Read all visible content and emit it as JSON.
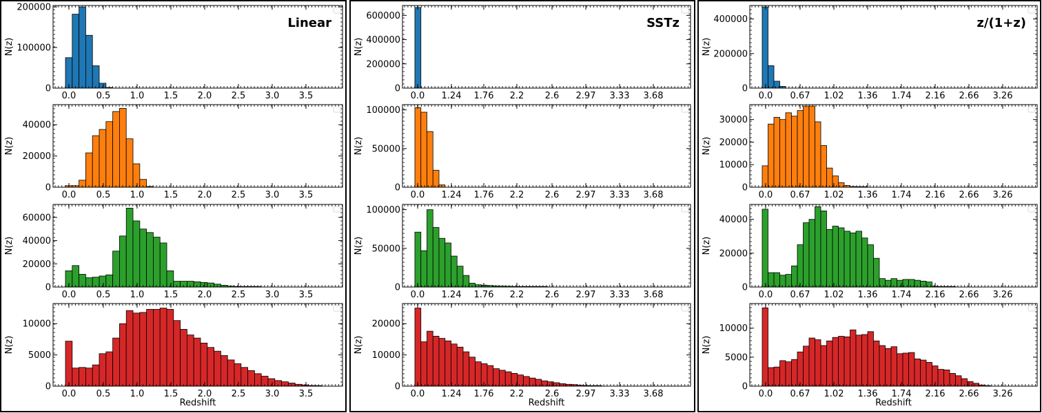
{
  "chart_data": [
    {
      "type": "bar",
      "title": "Linear",
      "xlabel": "Redshift",
      "ylabel": "N(z)",
      "xticks": [
        "0.0",
        "0.5",
        "1.0",
        "1.5",
        "2.0",
        "2.5",
        "3.0",
        "3.5"
      ],
      "subplots": [
        {
          "color": "#1f77b4",
          "ylim": [
            0,
            200000
          ],
          "yticks": [
            "0",
            "100000",
            "200000"
          ],
          "values": [
            75000,
            182000,
            200000,
            130000,
            55000,
            12000,
            1500
          ]
        },
        {
          "color": "#ff7f0e",
          "ylim": [
            0,
            52000
          ],
          "yticks": [
            "0",
            "20000",
            "40000"
          ],
          "values": [
            1000,
            1000,
            4500,
            22000,
            33000,
            37000,
            42000,
            48500,
            50500,
            31000,
            15000,
            5000,
            500
          ]
        },
        {
          "color": "#2ca02c",
          "ylim": [
            0,
            70000
          ],
          "yticks": [
            "0",
            "20000",
            "40000",
            "60000"
          ],
          "values": [
            14000,
            18500,
            11000,
            8000,
            8500,
            9500,
            10500,
            31000,
            44000,
            68000,
            57000,
            50000,
            47000,
            43000,
            38000,
            14000,
            5000,
            5000,
            5000,
            4500,
            4000,
            3500,
            2500,
            1500,
            800,
            400,
            200,
            100,
            50,
            0,
            0,
            0,
            0,
            0,
            0,
            0,
            0,
            0,
            0,
            0
          ]
        },
        {
          "color": "#d62728",
          "ylim": [
            0,
            13000
          ],
          "yticks": [
            "0",
            "5000",
            "10000"
          ],
          "values": [
            7200,
            2900,
            3000,
            2900,
            3400,
            5200,
            5500,
            7700,
            10000,
            12100,
            11700,
            11800,
            12300,
            12300,
            12500,
            12300,
            10500,
            9100,
            8200,
            7700,
            6900,
            6200,
            5600,
            4900,
            4200,
            3600,
            3000,
            2500,
            2000,
            1600,
            1200,
            900,
            700,
            500,
            300,
            200,
            100,
            50,
            0,
            0
          ]
        }
      ]
    },
    {
      "type": "bar",
      "title": "SSTz",
      "xlabel": "Redshift",
      "ylabel": "N(z)",
      "xticks": [
        "0.0",
        "1.24",
        "1.76",
        "2.2",
        "2.6",
        "2.97",
        "3.33",
        "3.68"
      ],
      "subplots": [
        {
          "color": "#1f77b4",
          "ylim": [
            0,
            670000
          ],
          "yticks": [
            "0",
            "200000",
            "400000",
            "600000"
          ],
          "values": [
            665000
          ]
        },
        {
          "color": "#ff7f0e",
          "ylim": [
            0,
            105000
          ],
          "yticks": [
            "0",
            "50000",
            "100000"
          ],
          "values": [
            103000,
            97000,
            72000,
            22000,
            3000
          ]
        },
        {
          "color": "#2ca02c",
          "ylim": [
            0,
            105000
          ],
          "yticks": [
            "0",
            "50000",
            "100000"
          ],
          "values": [
            71000,
            47000,
            100000,
            77000,
            63000,
            57000,
            40000,
            27000,
            15000,
            5000,
            3000,
            2500,
            2000,
            1500,
            1200,
            1000,
            700,
            500,
            300,
            200,
            100,
            50,
            0,
            0,
            0,
            0,
            0,
            0,
            0,
            0,
            0,
            0,
            0,
            0,
            0,
            0,
            0,
            0,
            0,
            0
          ]
        },
        {
          "color": "#d62728",
          "ylim": [
            0,
            26000
          ],
          "yticks": [
            "0",
            "10000",
            "20000"
          ],
          "values": [
            25000,
            14200,
            17600,
            16000,
            15300,
            14500,
            13500,
            12500,
            11000,
            9300,
            7800,
            7200,
            6600,
            5600,
            5100,
            4600,
            4100,
            3600,
            3100,
            2600,
            2200,
            1700,
            1400,
            1100,
            800,
            600,
            500,
            300,
            200,
            100,
            50,
            0,
            0,
            0,
            0,
            0,
            0,
            0,
            0,
            0
          ]
        }
      ]
    },
    {
      "type": "bar",
      "title": "z/(1+z)",
      "xlabel": "Redshift",
      "ylabel": "N(z)",
      "xticks": [
        "0.0",
        "0.67",
        "1.02",
        "1.36",
        "1.74",
        "2.16",
        "2.66",
        "3.26"
      ],
      "subplots": [
        {
          "color": "#1f77b4",
          "ylim": [
            0,
            470000
          ],
          "yticks": [
            "0",
            "200000",
            "400000"
          ],
          "values": [
            470000,
            130000,
            40000,
            10000
          ]
        },
        {
          "color": "#ff7f0e",
          "ylim": [
            0,
            36000
          ],
          "yticks": [
            "0",
            "10000",
            "20000",
            "30000"
          ],
          "values": [
            9500,
            28000,
            31000,
            30000,
            33000,
            31500,
            34000,
            36000,
            36000,
            29000,
            18500,
            8500,
            5000,
            2000,
            800,
            300,
            100,
            50,
            0,
            0,
            0,
            0,
            0,
            0,
            0,
            0,
            0,
            0,
            0,
            0,
            0,
            0,
            0,
            0,
            0,
            0,
            0,
            0,
            0
          ]
        },
        {
          "color": "#2ca02c",
          "ylim": [
            0,
            48000
          ],
          "yticks": [
            "0",
            "20000",
            "40000"
          ],
          "values": [
            46000,
            8500,
            8500,
            7000,
            7500,
            12500,
            25000,
            38000,
            40000,
            47500,
            45000,
            34000,
            36000,
            35000,
            33000,
            32000,
            33000,
            29000,
            25000,
            17000,
            5000,
            4000,
            5000,
            4000,
            4500,
            4500,
            4000,
            3500,
            3000,
            500,
            200,
            100,
            50,
            0,
            0,
            0,
            0,
            0,
            0,
            0
          ]
        },
        {
          "color": "#d62728",
          "ylim": [
            0,
            14000
          ],
          "yticks": [
            "0",
            "5000",
            "10000"
          ],
          "values": [
            13500,
            3200,
            3300,
            4400,
            4200,
            4600,
            5900,
            6900,
            8300,
            8000,
            7000,
            7800,
            8400,
            8600,
            8500,
            9700,
            8800,
            8900,
            9400,
            7800,
            7000,
            6500,
            6800,
            5600,
            5700,
            5800,
            4700,
            4500,
            4100,
            3500,
            2900,
            2800,
            2200,
            1800,
            1300,
            800,
            500,
            200,
            100,
            0
          ]
        }
      ]
    }
  ]
}
